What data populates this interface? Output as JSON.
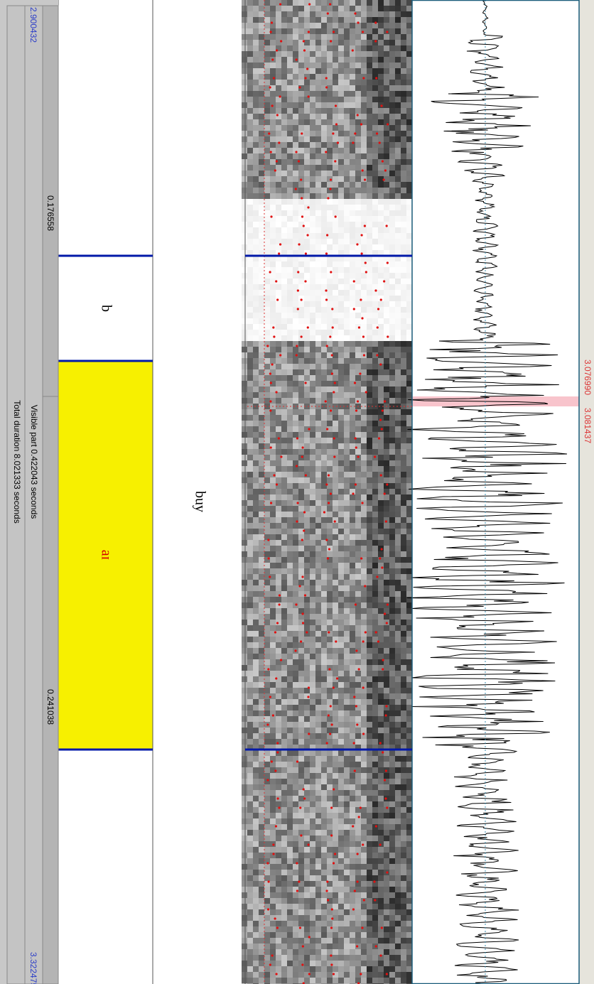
{
  "window": {
    "start_time": "2.900432",
    "end_time": "3.322475",
    "visible_part": "Visible part 0.422043 seconds",
    "total_duration": "Total duration 8.021333 seconds"
  },
  "cursor": {
    "left": "3.076990",
    "right": "3.081437"
  },
  "interval_times": [
    "0.176558",
    "0.241038"
  ],
  "tiers": [
    {
      "intervals": [
        "buy"
      ]
    },
    {
      "intervals": [
        "b",
        "aɪ"
      ]
    }
  ]
}
